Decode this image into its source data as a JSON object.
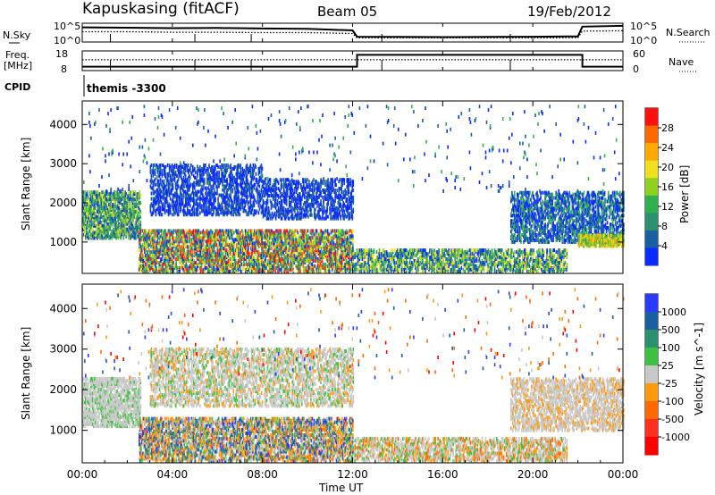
{
  "header": {
    "station": "Kapuskasing (fitACF)",
    "beam": "Beam 05",
    "date": "19/Feb/2012"
  },
  "chart_data": [
    {
      "type": "line",
      "panel": "noise",
      "left_label": "N.Sky",
      "right_label": "N.Search",
      "left_ticks": [
        "10^5",
        "10^0"
      ],
      "right_ticks": [
        "10^5",
        "10^0"
      ],
      "x_ticks": [
        "00:00",
        "04:00",
        "08:00",
        "12:00",
        "16:00",
        "20:00",
        "00:00"
      ],
      "series": [
        {
          "name": "N.Sky",
          "style": "solid",
          "x_hours": [
            0,
            2,
            4,
            6,
            8,
            10,
            12,
            12.2,
            14,
            16,
            18,
            20,
            22,
            22.2,
            24
          ],
          "y_frac": [
            0.78,
            0.76,
            0.74,
            0.75,
            0.72,
            0.7,
            0.62,
            0.28,
            0.27,
            0.26,
            0.27,
            0.28,
            0.3,
            0.82,
            0.86
          ]
        },
        {
          "name": "N.Search",
          "style": "dotted",
          "x_hours": [
            0,
            2,
            4,
            6,
            8,
            10,
            12,
            12.2,
            14,
            16,
            18,
            20,
            22,
            22.2,
            24
          ],
          "y_frac": [
            0.55,
            0.55,
            0.52,
            0.52,
            0.5,
            0.5,
            0.45,
            0.22,
            0.22,
            0.22,
            0.22,
            0.22,
            0.23,
            0.58,
            0.6
          ]
        }
      ]
    },
    {
      "type": "line",
      "panel": "frequency",
      "left_label_lines": [
        "Freq.",
        "[MHz]"
      ],
      "right_label": "Nave",
      "left_ticks": [
        "18",
        "8"
      ],
      "right_ticks": [
        "60",
        "0"
      ],
      "series": [
        {
          "name": "Freq.",
          "style": "solid",
          "x_hours": [
            0,
            12.2,
            12.2,
            22.2,
            22.2,
            24
          ],
          "y_frac": [
            0.2,
            0.2,
            0.8,
            0.8,
            0.2,
            0.2
          ]
        },
        {
          "name": "Nave",
          "style": "dotted",
          "x_hours": [
            0,
            24
          ],
          "y_frac": [
            0.55,
            0.55
          ]
        }
      ]
    },
    {
      "type": "heatmap",
      "panel": "power",
      "cpid_label": "CPID",
      "cpid_text": "themis -3300",
      "ylabel": "Slant Range [km]",
      "yticks": [
        1000,
        2000,
        3000,
        4000
      ],
      "ylim": [
        200,
        4600
      ],
      "xlim_hours": [
        0,
        24
      ],
      "colorbar_label": "Power [dB]",
      "colorbar_ticks": [
        "28",
        "24",
        "20",
        "16",
        "12",
        "8",
        "4"
      ],
      "colorbar_colors": [
        "#ff1010",
        "#ff6a00",
        "#ffaa00",
        "#f0e020",
        "#90d020",
        "#30b050",
        "#2a9070",
        "#1a60a0",
        "#0a2aff"
      ],
      "regions": [
        {
          "x0": 0,
          "x1": 2.6,
          "r0": 1100,
          "r1": 2300,
          "density": 0.55,
          "palette": [
            5,
            5,
            6,
            6,
            7,
            3,
            4,
            8
          ]
        },
        {
          "x0": 3,
          "x1": 8,
          "r0": 1700,
          "r1": 3000,
          "density": 0.35,
          "palette": [
            8,
            8,
            7,
            8,
            7
          ]
        },
        {
          "x0": 8,
          "x1": 12,
          "r0": 1600,
          "r1": 2600,
          "density": 0.35,
          "palette": [
            8,
            8,
            7,
            8,
            7
          ]
        },
        {
          "x0": 2.5,
          "x1": 12,
          "r0": 250,
          "r1": 1300,
          "density": 0.5,
          "palette": [
            5,
            6,
            4,
            3,
            7,
            8,
            1,
            0
          ]
        },
        {
          "x0": 12,
          "x1": 21.5,
          "r0": 250,
          "r1": 800,
          "density": 0.45,
          "palette": [
            5,
            6,
            4,
            7,
            8,
            3
          ]
        },
        {
          "x0": 19,
          "x1": 24,
          "r0": 1000,
          "r1": 2300,
          "density": 0.4,
          "palette": [
            8,
            8,
            7,
            6,
            5
          ]
        },
        {
          "x0": 22,
          "x1": 24,
          "r0": 900,
          "r1": 1200,
          "density": 0.7,
          "palette": [
            2,
            3,
            4,
            5
          ]
        },
        {
          "x0": 0,
          "x1": 24,
          "r0": 2300,
          "r1": 4500,
          "density": 0.012,
          "palette": [
            8,
            8,
            7,
            5
          ]
        }
      ]
    },
    {
      "type": "heatmap",
      "panel": "velocity",
      "ylabel": "Slant Range [km]",
      "yticks": [
        1000,
        2000,
        3000,
        4000
      ],
      "ylim": [
        200,
        4600
      ],
      "xlim_hours": [
        0,
        24
      ],
      "xlabel": "Time UT",
      "colorbar_label": "Velocity [m s^-1]",
      "colorbar_ticks": [
        "1000",
        "500",
        "100",
        "25",
        "-25",
        "-100",
        "-500",
        "-1000"
      ],
      "colorbar_colors": [
        "#2a3aff",
        "#1a60a0",
        "#2a9070",
        "#40c040",
        "#c8c8c8",
        "#ff9a10",
        "#ff6a00",
        "#ff3020",
        "#ff0000"
      ],
      "regions": [
        {
          "x0": 0,
          "x1": 2.6,
          "r0": 1100,
          "r1": 2300,
          "density": 0.55,
          "palette": [
            4,
            4,
            4,
            4,
            3
          ]
        },
        {
          "x0": 3,
          "x1": 12,
          "r0": 1600,
          "r1": 3000,
          "density": 0.35,
          "palette": [
            4,
            4,
            4,
            4,
            5,
            3
          ]
        },
        {
          "x0": 2.5,
          "x1": 12,
          "r0": 250,
          "r1": 1300,
          "density": 0.5,
          "palette": [
            4,
            4,
            5,
            5,
            6,
            3,
            2,
            1,
            0
          ]
        },
        {
          "x0": 12,
          "x1": 21.5,
          "r0": 250,
          "r1": 800,
          "density": 0.45,
          "palette": [
            4,
            4,
            4,
            5,
            6,
            3
          ]
        },
        {
          "x0": 19,
          "x1": 24,
          "r0": 1000,
          "r1": 2300,
          "density": 0.4,
          "palette": [
            4,
            4,
            4,
            5
          ]
        },
        {
          "x0": 0,
          "x1": 24,
          "r0": 2300,
          "r1": 4500,
          "density": 0.012,
          "palette": [
            0,
            1,
            4,
            5,
            6,
            8
          ]
        }
      ]
    }
  ]
}
